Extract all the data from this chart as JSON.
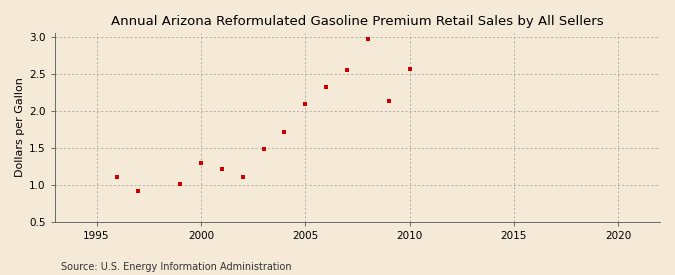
{
  "title": "Annual Arizona Reformulated Gasoline Premium Retail Sales by All Sellers",
  "ylabel": "Dollars per Gallon",
  "source": "Source: U.S. Energy Information Administration",
  "xlim": [
    1993,
    2022
  ],
  "ylim": [
    0.5,
    3.05
  ],
  "xticks": [
    1995,
    2000,
    2005,
    2010,
    2015,
    2020
  ],
  "yticks": [
    0.5,
    1.0,
    1.5,
    2.0,
    2.5,
    3.0
  ],
  "background_color": "#f5ead8",
  "grid_color": "#999999",
  "marker_color": "#cc0000",
  "data_x": [
    1996,
    1997,
    1999,
    2000,
    2001,
    2002,
    2003,
    2004,
    2005,
    2006,
    2007,
    2008,
    2009,
    2010
  ],
  "data_y": [
    1.1,
    0.92,
    1.01,
    1.3,
    1.22,
    1.1,
    1.49,
    1.72,
    2.09,
    2.33,
    2.56,
    2.98,
    2.13,
    2.57
  ],
  "title_fontsize": 9.5,
  "label_fontsize": 8.0,
  "tick_fontsize": 7.5,
  "source_fontsize": 7.0
}
